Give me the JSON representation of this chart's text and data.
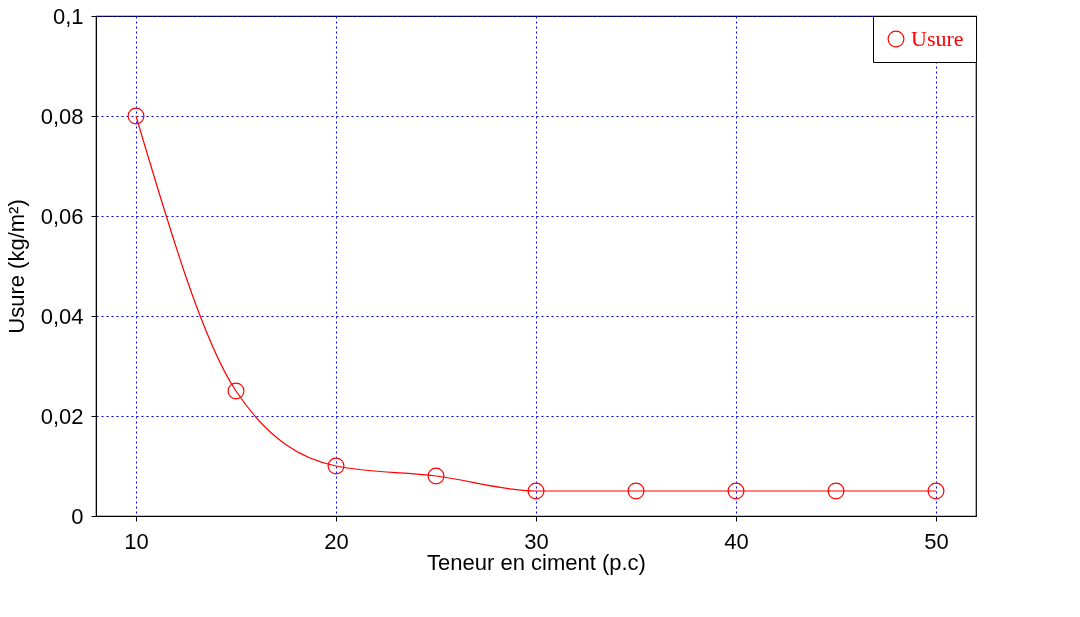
{
  "chart_data": {
    "type": "line",
    "xlabel": "Teneur en ciment (p.c)",
    "ylabel": "Usure (kg/m²)",
    "x": [
      10,
      15,
      20,
      25,
      30,
      35,
      40,
      45,
      50
    ],
    "series": [
      {
        "name": "Usure",
        "color": "#ff0000",
        "values": [
          0.08,
          0.025,
          0.01,
          0.008,
          0.005,
          0.005,
          0.005,
          0.005,
          0.005
        ]
      }
    ],
    "xlim": [
      8,
      52
    ],
    "xticks": [
      10,
      20,
      30,
      40,
      50
    ],
    "ylim": [
      0,
      0.1
    ],
    "yticks": [
      {
        "value": 0,
        "label": "0"
      },
      {
        "value": 0.02,
        "label": "0,02"
      },
      {
        "value": 0.04,
        "label": "0,04"
      },
      {
        "value": 0.06,
        "label": "0,06"
      },
      {
        "value": 0.08,
        "label": "0,08"
      },
      {
        "value": 0.1,
        "label": "0,1"
      }
    ],
    "grid": true,
    "legend": "top right",
    "marker": "circle",
    "line_style": "solid"
  }
}
